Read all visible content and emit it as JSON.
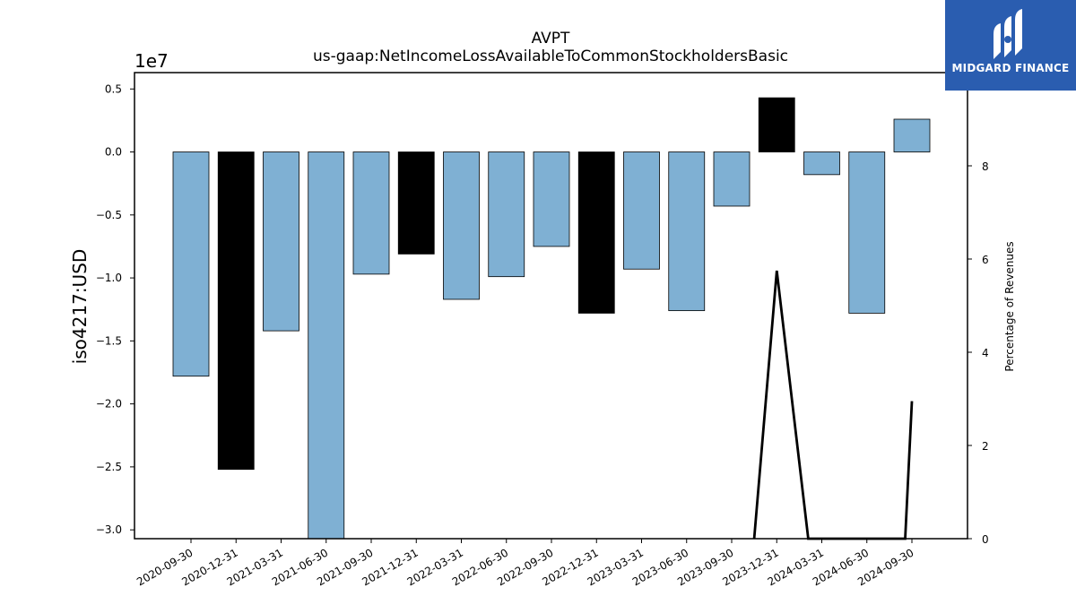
{
  "chart_data": {
    "type": "bar",
    "title": "AVPT",
    "subtitle": "us-gaap:NetIncomeLossAvailableToCommonStockholdersBasic",
    "ylabel": "iso4217:USD",
    "y2label": "Percentage of Revenues",
    "y_offset_label": "1e7",
    "ylim": [
      -3.07,
      0.63
    ],
    "y_ticks": [
      0.5,
      0.0,
      -0.5,
      -1.0,
      -1.5,
      -2.0,
      -2.5,
      -3.0
    ],
    "y_tick_labels": [
      "0.5",
      "0.0",
      "−0.5",
      "−1.0",
      "−1.5",
      "−2.0",
      "−2.5",
      "−3.0"
    ],
    "y2lim": [
      0,
      10
    ],
    "y2_ticks": [
      0,
      2,
      4,
      6,
      8
    ],
    "y2_tick_labels": [
      "0",
      "2",
      "4",
      "6",
      "8"
    ],
    "categories": [
      "2020-09-30",
      "2020-12-31",
      "2021-03-31",
      "2021-06-30",
      "2021-09-30",
      "2021-12-31",
      "2022-03-31",
      "2022-06-30",
      "2022-09-30",
      "2022-12-31",
      "2023-03-31",
      "2023-06-30",
      "2023-09-30",
      "2023-12-31",
      "2024-03-31",
      "2024-06-30",
      "2024-09-30"
    ],
    "series": [
      {
        "values": [
          -1.78,
          -2.52,
          -1.42,
          -3.07,
          -0.97,
          -0.81,
          -1.17,
          -0.99,
          -0.75,
          -1.28,
          -0.93,
          -1.26,
          -0.43,
          0.43,
          -0.18,
          -1.28,
          0.26
        ]
      }
    ],
    "bar_colors": [
      "#7fb0d3",
      "#000000",
      "#7fb0d3",
      "#7fb0d3",
      "#7fb0d3",
      "#000000",
      "#7fb0d3",
      "#7fb0d3",
      "#7fb0d3",
      "#000000",
      "#7fb0d3",
      "#7fb0d3",
      "#7fb0d3",
      "#000000",
      "#7fb0d3",
      "#7fb0d3",
      "#7fb0d3"
    ],
    "line_series": {
      "x_positions": [
        12.5,
        13,
        13.7,
        15.85,
        16
      ],
      "values": [
        0,
        5.75,
        0,
        0,
        2.95
      ]
    },
    "grid": false
  },
  "logo": {
    "text": "MIDGARD FINANCE",
    "background": "#2a5db0"
  }
}
